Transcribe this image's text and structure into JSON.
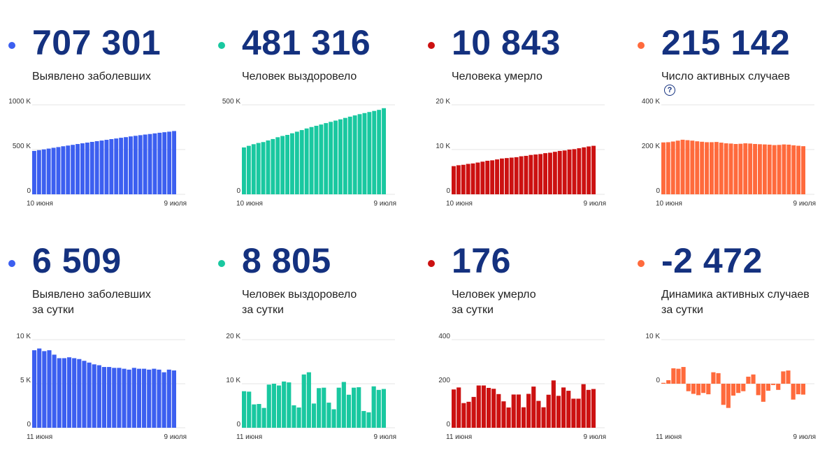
{
  "cards": [
    {
      "value": "707 301",
      "label": [
        "Выявлено заболевших"
      ],
      "color": "#3c5ff0",
      "icon": "dot-icon"
    },
    {
      "value": "481 316",
      "label": [
        "Человек выздоровело"
      ],
      "color": "#19c8a0",
      "icon": "dot-icon"
    },
    {
      "value": "10 843",
      "label": [
        "Человека умерло"
      ],
      "color": "#cc1111",
      "icon": "dot-icon"
    },
    {
      "value": "215 142",
      "label": [
        "Число активных случаев"
      ],
      "color": "#ff6a3c",
      "icon": "dot-icon",
      "help_icon": "question-circle-icon",
      "help_glyph": "?"
    },
    {
      "value": "6 509",
      "label": [
        "Выявлено заболевших",
        "за сутки"
      ],
      "color": "#3c5ff0",
      "icon": "dot-icon"
    },
    {
      "value": "8 805",
      "label": [
        "Человек выздоровело",
        "за сутки"
      ],
      "color": "#19c8a0",
      "icon": "dot-icon"
    },
    {
      "value": "176",
      "label": [
        "Человек умерло",
        "за сутки"
      ],
      "color": "#cc1111",
      "icon": "dot-icon"
    },
    {
      "value": "-2 472",
      "label": [
        "Динамика активных случаев",
        "за сутки"
      ],
      "color": "#ff6a3c",
      "icon": "dot-icon"
    }
  ],
  "chart_data": [
    {
      "type": "bar",
      "title": "Выявлено заболевших",
      "color": "#3c5ff0",
      "x_start_label": "10 июня",
      "x_end_label": "9 июля",
      "ylim": [
        0,
        1000000
      ],
      "yticks": [
        0,
        500000,
        1000000
      ],
      "ytick_labels": [
        "0",
        "500 K",
        "1000 K"
      ],
      "values": [
        485000,
        494000,
        502000,
        511000,
        520000,
        528000,
        537000,
        545000,
        553000,
        562000,
        570000,
        578000,
        586000,
        594000,
        601000,
        609000,
        617000,
        624000,
        632000,
        639000,
        647000,
        654000,
        661000,
        668000,
        674000,
        681000,
        688000,
        694000,
        700000,
        707301
      ]
    },
    {
      "type": "bar",
      "title": "Человек выздоровело",
      "color": "#19c8a0",
      "x_start_label": "10 июня",
      "x_end_label": "9 июля",
      "ylim": [
        0,
        500000
      ],
      "yticks": [
        0,
        500000
      ],
      "ytick_labels": [
        "0",
        "500 K"
      ],
      "values": [
        262000,
        271000,
        280000,
        287000,
        292000,
        301000,
        309000,
        319000,
        326000,
        332000,
        341000,
        350000,
        359000,
        368000,
        376000,
        383000,
        390000,
        398000,
        405000,
        412000,
        419000,
        427000,
        434000,
        441000,
        448000,
        454000,
        460000,
        466000,
        472000,
        481316
      ]
    },
    {
      "type": "bar",
      "title": "Человека умерло",
      "color": "#cc1111",
      "x_start_label": "10 июня",
      "x_end_label": "9 июля",
      "ylim": [
        0,
        20000
      ],
      "yticks": [
        0,
        10000,
        20000
      ],
      "ytick_labels": [
        "0",
        "10 K",
        "20 K"
      ],
      "values": [
        6300,
        6500,
        6600,
        6800,
        6900,
        7100,
        7300,
        7500,
        7600,
        7800,
        8000,
        8100,
        8200,
        8300,
        8500,
        8600,
        8800,
        8900,
        9000,
        9200,
        9300,
        9500,
        9700,
        9800,
        10000,
        10100,
        10300,
        10500,
        10700,
        10843
      ]
    },
    {
      "type": "bar",
      "title": "Число активных случаев",
      "color": "#ff6a3c",
      "x_start_label": "10 июня",
      "x_end_label": "9 июля",
      "ylim": [
        0,
        400000
      ],
      "yticks": [
        0,
        200000,
        400000
      ],
      "ytick_labels": [
        "0",
        "200 K",
        "400 K"
      ],
      "values": [
        232000,
        233000,
        236000,
        240000,
        244000,
        242000,
        240000,
        237000,
        235000,
        233000,
        233000,
        234000,
        231000,
        228000,
        227000,
        225000,
        226000,
        228000,
        227000,
        225000,
        224000,
        223000,
        222000,
        220000,
        221000,
        223000,
        222000,
        219000,
        217000,
        215142
      ]
    },
    {
      "type": "bar",
      "title": "Выявлено заболевших за сутки",
      "color": "#3c5ff0",
      "x_start_label": "11 июня",
      "x_end_label": "9 июля",
      "ylim": [
        0,
        10000
      ],
      "yticks": [
        0,
        5000,
        10000
      ],
      "ytick_labels": [
        "0",
        "5 K",
        "10 K"
      ],
      "values": [
        8800,
        9000,
        8700,
        8800,
        8300,
        7900,
        7900,
        8000,
        7900,
        7800,
        7600,
        7400,
        7200,
        7100,
        6900,
        6900,
        6800,
        6800,
        6700,
        6600,
        6800,
        6700,
        6700,
        6600,
        6700,
        6600,
        6300,
        6600,
        6509
      ]
    },
    {
      "type": "bar",
      "title": "Человек выздоровело за сутки",
      "color": "#19c8a0",
      "x_start_label": "11 июня",
      "x_end_label": "9 июля",
      "ylim": [
        0,
        20000
      ],
      "yticks": [
        0,
        10000,
        20000
      ],
      "ytick_labels": [
        "0",
        "10 K",
        "20 K"
      ],
      "values": [
        8300,
        8200,
        5300,
        5400,
        4500,
        9800,
        10000,
        9600,
        10500,
        10300,
        5100,
        4600,
        12100,
        12600,
        5500,
        9000,
        9100,
        5700,
        4200,
        9100,
        10400,
        7500,
        9100,
        9200,
        3800,
        3500,
        9400,
        8600,
        8805
      ]
    },
    {
      "type": "bar",
      "title": "Человек умерло за сутки",
      "color": "#cc1111",
      "x_start_label": "11 июня",
      "x_end_label": "9 июля",
      "ylim": [
        0,
        400
      ],
      "yticks": [
        0,
        200,
        400
      ],
      "ytick_labels": [
        "0",
        "200",
        "400"
      ],
      "values": [
        174,
        183,
        112,
        118,
        140,
        192,
        192,
        181,
        177,
        153,
        120,
        92,
        151,
        151,
        93,
        154,
        187,
        122,
        93,
        150,
        215,
        145,
        183,
        168,
        132,
        132,
        198,
        172,
        176
      ]
    },
    {
      "type": "bar",
      "title": "Динамика активных случаев за сутки",
      "color": "#ff6a3c",
      "x_start_label": "11 июня",
      "x_end_label": "9 июля",
      "ylim": [
        -10000,
        10000
      ],
      "yticks": [
        0,
        10000
      ],
      "ytick_labels": [
        "0",
        "10 K"
      ],
      "values": [
        200,
        800,
        3500,
        3400,
        3800,
        -1700,
        -2300,
        -2600,
        -2100,
        -2400,
        2600,
        2400,
        -4800,
        -5500,
        -2700,
        -2100,
        -1700,
        1600,
        2100,
        -2600,
        -4100,
        -1600,
        -300,
        -1400,
        2800,
        3000,
        -3600,
        -2400,
        -2472
      ]
    }
  ]
}
